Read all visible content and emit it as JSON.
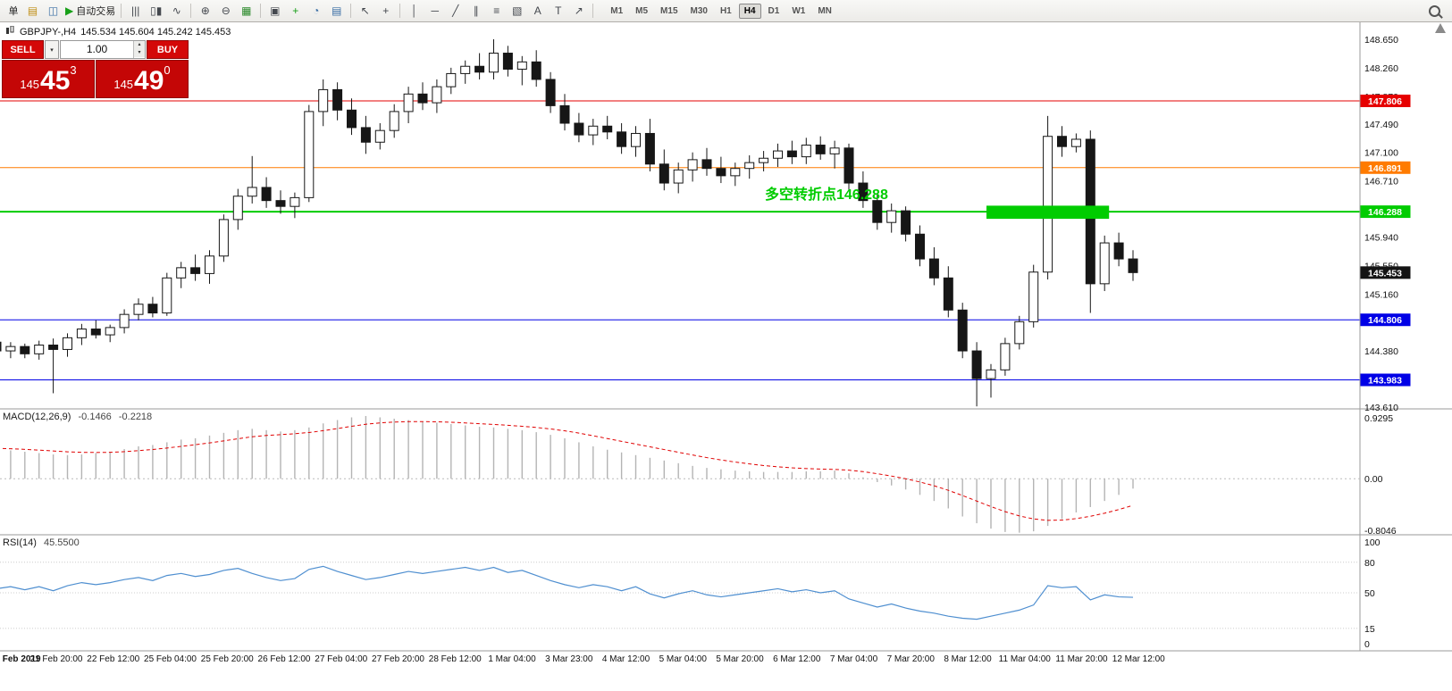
{
  "toolbar": {
    "items": [
      {
        "kind": "button",
        "name": "new-order-button",
        "label": "单"
      },
      {
        "kind": "icon",
        "name": "charts-icon",
        "glyph": "▤",
        "glyph_color": "#c09018"
      },
      {
        "kind": "icon",
        "name": "profiles-icon",
        "glyph": "◫",
        "glyph_color": "#3a6ea5"
      },
      {
        "kind": "button",
        "name": "autotrade-button",
        "glyph": "▶",
        "glyph_color": "#18a018",
        "label": "自动交易"
      },
      {
        "kind": "sep"
      },
      {
        "kind": "icon",
        "name": "bar-chart-icon",
        "glyph": "|||"
      },
      {
        "kind": "icon",
        "name": "candlestick-chart-icon",
        "glyph": "▯▮"
      },
      {
        "kind": "icon",
        "name": "line-chart-icon",
        "glyph": "∿"
      },
      {
        "kind": "sep"
      },
      {
        "kind": "icon",
        "name": "zoom-in-icon",
        "glyph": "⊕"
      },
      {
        "kind": "icon",
        "name": "zoom-out-icon",
        "glyph": "⊖"
      },
      {
        "kind": "icon",
        "name": "auto-scroll-icon",
        "glyph": "▦",
        "glyph_color": "#2c8a2c"
      },
      {
        "kind": "sep"
      },
      {
        "kind": "icon",
        "name": "tile-windows-icon",
        "glyph": "▣"
      },
      {
        "kind": "icon",
        "name": "indicators-icon",
        "glyph": "+",
        "glyph_color": "#18a018"
      },
      {
        "kind": "icon",
        "name": "periods-icon",
        "glyph": "◔",
        "glyph_color": "#3a6ea5"
      },
      {
        "kind": "icon",
        "name": "templates-icon",
        "glyph": "▤",
        "glyph_color": "#3a6ea5"
      },
      {
        "kind": "sep"
      },
      {
        "kind": "icon",
        "name": "cursor-icon",
        "glyph": "↖"
      },
      {
        "kind": "icon",
        "name": "crosshair-icon",
        "glyph": "+"
      },
      {
        "kind": "sep"
      },
      {
        "kind": "icon",
        "name": "vertical-line-icon",
        "glyph": "│"
      },
      {
        "kind": "icon",
        "name": "horizontal-line-icon",
        "glyph": "─"
      },
      {
        "kind": "icon",
        "name": "trendline-icon",
        "glyph": "╱"
      },
      {
        "kind": "icon",
        "name": "equidistant-channel-icon",
        "glyph": "∥"
      },
      {
        "kind": "icon",
        "name": "fibonacci-icon",
        "glyph": "≡"
      },
      {
        "kind": "icon",
        "name": "shapes-icon",
        "glyph": "▧"
      },
      {
        "kind": "icon",
        "name": "text-icon",
        "glyph": "A"
      },
      {
        "kind": "icon",
        "name": "text-label-icon",
        "glyph": "T"
      },
      {
        "kind": "icon",
        "name": "arrows-icon",
        "glyph": "↗"
      },
      {
        "kind": "sep"
      }
    ],
    "timeframes": [
      "M1",
      "M5",
      "M15",
      "M30",
      "H1",
      "H4",
      "D1",
      "W1",
      "MN"
    ],
    "active_timeframe": "H4"
  },
  "header": {
    "symbol": "GBPJPY-,H4",
    "ohlc": "145.534 145.604 145.242 145.453"
  },
  "trade_panel": {
    "sell_label": "SELL",
    "buy_label": "BUY",
    "volume": "1.00",
    "dropdown_glyph": "▾",
    "spinner_up": "▴",
    "spinner_down": "▾",
    "sell_price": {
      "prefix": "145",
      "big": "45",
      "sup": "3"
    },
    "buy_price": {
      "prefix": "145",
      "big": "49",
      "sup": "0"
    }
  },
  "chart_data": {
    "type": "candlestick",
    "symbol": "GBPJPY-",
    "timeframe": "H4",
    "price_range": {
      "min": 143.61,
      "max": 148.65
    },
    "price_ticks": [
      148.65,
      148.26,
      147.87,
      147.49,
      147.1,
      146.71,
      146.32,
      145.94,
      145.55,
      145.16,
      144.77,
      144.38,
      143.99,
      143.61
    ],
    "hlines": [
      {
        "price": 147.806,
        "label": "147.806",
        "color": "#e60000",
        "width": 1
      },
      {
        "price": 146.891,
        "label": "146.891",
        "color": "#ff7b00",
        "width": 1
      },
      {
        "price": 146.288,
        "label": "146.288",
        "color": "#00cc00",
        "width": 2
      },
      {
        "price": 144.806,
        "label": "144.806",
        "color": "#0000e6",
        "width": 1
      },
      {
        "price": 143.983,
        "label": "143.983",
        "color": "#0000e6",
        "width": 1
      }
    ],
    "current_price": {
      "price": 145.453,
      "label": "145.453",
      "color": "#141414"
    },
    "highlight_box": {
      "from_candle": 70,
      "to_candle": 78,
      "price_top": 146.37,
      "price_bottom": 146.19,
      "color": "#00cc00"
    },
    "annotation": {
      "text": "多空转折点146.288",
      "color": "#00cc00"
    },
    "candles": [
      [
        144.5,
        144.58,
        144.32,
        144.38
      ],
      [
        144.38,
        144.5,
        144.28,
        144.44
      ],
      [
        144.44,
        144.48,
        144.28,
        144.34
      ],
      [
        144.34,
        144.52,
        144.26,
        144.46
      ],
      [
        144.46,
        144.55,
        143.8,
        144.4
      ],
      [
        144.4,
        144.62,
        144.3,
        144.56
      ],
      [
        144.56,
        144.75,
        144.46,
        144.68
      ],
      [
        144.68,
        144.8,
        144.55,
        144.6
      ],
      [
        144.6,
        144.74,
        144.5,
        144.7
      ],
      [
        144.7,
        144.95,
        144.62,
        144.88
      ],
      [
        144.88,
        145.1,
        144.8,
        145.02
      ],
      [
        145.02,
        145.12,
        144.84,
        144.9
      ],
      [
        144.9,
        145.45,
        144.86,
        145.38
      ],
      [
        145.38,
        145.6,
        145.24,
        145.52
      ],
      [
        145.52,
        145.7,
        145.34,
        145.44
      ],
      [
        145.44,
        145.76,
        145.3,
        145.68
      ],
      [
        145.68,
        146.25,
        145.6,
        146.18
      ],
      [
        146.18,
        146.6,
        146.04,
        146.5
      ],
      [
        146.5,
        147.05,
        146.4,
        146.62
      ],
      [
        146.62,
        146.76,
        146.34,
        146.44
      ],
      [
        146.44,
        146.58,
        146.26,
        146.36
      ],
      [
        146.36,
        146.55,
        146.2,
        146.48
      ],
      [
        146.48,
        147.75,
        146.42,
        147.66
      ],
      [
        147.66,
        148.1,
        147.46,
        147.96
      ],
      [
        147.96,
        148.06,
        147.54,
        147.68
      ],
      [
        147.68,
        147.84,
        147.34,
        147.44
      ],
      [
        147.44,
        147.6,
        147.08,
        147.24
      ],
      [
        147.24,
        147.5,
        147.14,
        147.4
      ],
      [
        147.4,
        147.76,
        147.3,
        147.66
      ],
      [
        147.66,
        148.0,
        147.5,
        147.9
      ],
      [
        147.9,
        148.06,
        147.68,
        147.78
      ],
      [
        147.78,
        148.1,
        147.64,
        148.0
      ],
      [
        148.0,
        148.26,
        147.9,
        148.18
      ],
      [
        148.18,
        148.36,
        148.04,
        148.28
      ],
      [
        148.28,
        148.46,
        148.1,
        148.2
      ],
      [
        148.2,
        148.65,
        148.1,
        148.46
      ],
      [
        148.46,
        148.56,
        148.14,
        148.24
      ],
      [
        148.24,
        148.42,
        148.02,
        148.34
      ],
      [
        148.34,
        148.5,
        148.0,
        148.1
      ],
      [
        148.1,
        148.2,
        147.64,
        147.74
      ],
      [
        147.74,
        147.9,
        147.4,
        147.5
      ],
      [
        147.5,
        147.64,
        147.24,
        147.34
      ],
      [
        147.34,
        147.56,
        147.2,
        147.46
      ],
      [
        147.46,
        147.6,
        147.28,
        147.38
      ],
      [
        147.38,
        147.5,
        147.08,
        147.18
      ],
      [
        147.18,
        147.46,
        147.04,
        147.36
      ],
      [
        147.36,
        147.56,
        146.84,
        146.94
      ],
      [
        146.94,
        147.14,
        146.58,
        146.68
      ],
      [
        146.68,
        146.96,
        146.54,
        146.86
      ],
      [
        146.86,
        147.1,
        146.7,
        147.0
      ],
      [
        147.0,
        147.16,
        146.78,
        146.88
      ],
      [
        146.88,
        147.04,
        146.68,
        146.78
      ],
      [
        146.78,
        146.96,
        146.64,
        146.88
      ],
      [
        146.88,
        147.06,
        146.74,
        146.96
      ],
      [
        146.96,
        147.12,
        146.84,
        147.02
      ],
      [
        147.02,
        147.22,
        146.9,
        147.12
      ],
      [
        147.12,
        147.26,
        146.94,
        147.04
      ],
      [
        147.04,
        147.3,
        146.94,
        147.2
      ],
      [
        147.2,
        147.32,
        147.0,
        147.08
      ],
      [
        147.08,
        147.26,
        146.88,
        147.16
      ],
      [
        147.16,
        147.22,
        146.58,
        146.68
      ],
      [
        146.68,
        146.84,
        146.34,
        146.44
      ],
      [
        146.44,
        146.54,
        146.04,
        146.14
      ],
      [
        146.14,
        146.4,
        146.0,
        146.3
      ],
      [
        146.3,
        146.36,
        145.88,
        145.98
      ],
      [
        145.98,
        146.1,
        145.54,
        145.64
      ],
      [
        145.64,
        145.8,
        145.28,
        145.38
      ],
      [
        145.38,
        145.54,
        144.84,
        144.94
      ],
      [
        144.94,
        145.04,
        144.28,
        144.38
      ],
      [
        144.38,
        144.5,
        143.62,
        144.0
      ],
      [
        144.0,
        144.2,
        143.74,
        144.12
      ],
      [
        144.12,
        144.56,
        144.04,
        144.48
      ],
      [
        144.48,
        144.86,
        144.4,
        144.78
      ],
      [
        144.78,
        145.56,
        144.7,
        145.46
      ],
      [
        145.46,
        147.6,
        145.36,
        147.32
      ],
      [
        147.32,
        147.46,
        147.04,
        147.18
      ],
      [
        147.18,
        147.36,
        147.1,
        147.28
      ],
      [
        147.28,
        147.4,
        144.9,
        145.3
      ],
      [
        145.3,
        145.96,
        145.2,
        145.86
      ],
      [
        145.86,
        146.0,
        145.54,
        145.64
      ],
      [
        145.64,
        145.76,
        145.34,
        145.453
      ]
    ],
    "macd": {
      "label": "MACD(12,26,9)",
      "value1": "-0.1466",
      "value2": "-0.2218",
      "range": {
        "min": -0.8046,
        "max": 0.9295
      },
      "ticks": [
        "0.9295",
        "0.00",
        "-0.8046"
      ],
      "histogram": [
        0.45,
        0.42,
        0.4,
        0.38,
        0.36,
        0.35,
        0.36,
        0.38,
        0.4,
        0.44,
        0.48,
        0.5,
        0.54,
        0.58,
        0.6,
        0.64,
        0.68,
        0.72,
        0.74,
        0.72,
        0.7,
        0.72,
        0.76,
        0.82,
        0.87,
        0.91,
        0.93,
        0.91,
        0.89,
        0.87,
        0.85,
        0.83,
        0.81,
        0.79,
        0.77,
        0.76,
        0.74,
        0.72,
        0.69,
        0.65,
        0.6,
        0.54,
        0.48,
        0.43,
        0.39,
        0.35,
        0.31,
        0.27,
        0.23,
        0.19,
        0.16,
        0.14,
        0.12,
        0.11,
        0.1,
        0.1,
        0.1,
        0.11,
        0.11,
        0.12,
        0.08,
        0.02,
        -0.05,
        -0.1,
        -0.16,
        -0.24,
        -0.33,
        -0.44,
        -0.56,
        -0.66,
        -0.74,
        -0.79,
        -0.8,
        -0.78,
        -0.7,
        -0.6,
        -0.5,
        -0.42,
        -0.33,
        -0.24,
        -0.1466
      ]
    },
    "rsi": {
      "label": "RSI(14)",
      "value": "45.5500",
      "range": {
        "min": 0,
        "max": 100
      },
      "ticks": [
        "100",
        "80",
        "50",
        "15",
        "0"
      ],
      "levels": [
        80,
        50,
        15
      ],
      "values": [
        54,
        56,
        53,
        56,
        52,
        57,
        60,
        58,
        60,
        63,
        65,
        62,
        67,
        69,
        66,
        68,
        72,
        74,
        69,
        65,
        62,
        64,
        73,
        76,
        71,
        67,
        63,
        65,
        68,
        71,
        69,
        71,
        73,
        75,
        72,
        75,
        70,
        72,
        67,
        62,
        58,
        55,
        58,
        56,
        52,
        56,
        49,
        45,
        49,
        52,
        48,
        46,
        48,
        50,
        52,
        54,
        51,
        53,
        50,
        52,
        44,
        40,
        36,
        39,
        35,
        32,
        30,
        27,
        25,
        24,
        27,
        30,
        33,
        38,
        57,
        55,
        56,
        43,
        48,
        46,
        45.55
      ]
    },
    "time_labels": [
      "1 Feb 2019",
      "21 Feb 20:00",
      "22 Feb 12:00",
      "25 Feb 04:00",
      "25 Feb 20:00",
      "26 Feb 12:00",
      "27 Feb 04:00",
      "27 Feb 20:00",
      "28 Feb 12:00",
      "1 Mar 04:00",
      "3 Mar 23:00",
      "4 Mar 12:00",
      "5 Mar 04:00",
      "5 Mar 20:00",
      "6 Mar 12:00",
      "7 Mar 04:00",
      "7 Mar 20:00",
      "8 Mar 12:00",
      "11 Mar 04:00",
      "11 Mar 20:00",
      "12 Mar 12:00"
    ]
  }
}
